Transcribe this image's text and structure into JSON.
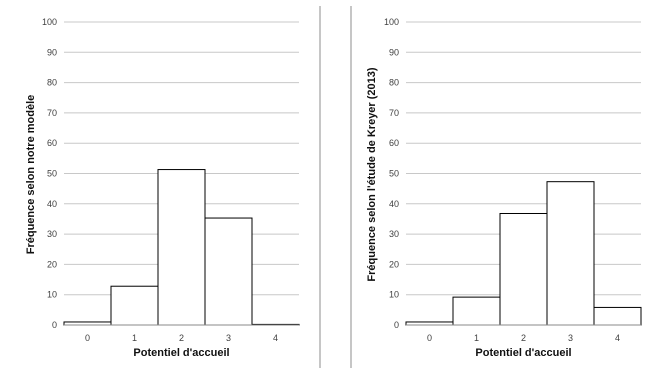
{
  "chart_data": [
    {
      "type": "bar",
      "title": "",
      "xlabel": "Potentiel d'accueil",
      "ylabel": "Fréquence selon notre modèle",
      "categories": [
        "0",
        "1",
        "2",
        "3",
        "4"
      ],
      "values": [
        1,
        12.8,
        51.3,
        35.3,
        0.2
      ],
      "ylim": [
        0,
        100
      ],
      "yticks": [
        "0",
        "10",
        "20",
        "30",
        "40",
        "50",
        "60",
        "70",
        "80",
        "90",
        "100"
      ],
      "grid": true,
      "legend": "none",
      "bar_fill": "#ffffff",
      "bar_stroke": "#000000",
      "grid_color": "#c8c8c8"
    },
    {
      "type": "bar",
      "title": "",
      "xlabel": "Potentiel d'accueil",
      "ylabel": "Fréquence selon l'étude de Kreyer (2013)",
      "categories": [
        "0",
        "1",
        "2",
        "3",
        "4"
      ],
      "values": [
        1,
        9.2,
        36.8,
        47.3,
        5.8
      ],
      "ylim": [
        0,
        100
      ],
      "yticks": [
        "0",
        "10",
        "20",
        "30",
        "40",
        "50",
        "60",
        "70",
        "80",
        "90",
        "100"
      ],
      "grid": true,
      "legend": "none",
      "bar_fill": "#ffffff",
      "bar_stroke": "#000000",
      "grid_color": "#c8c8c8"
    }
  ]
}
